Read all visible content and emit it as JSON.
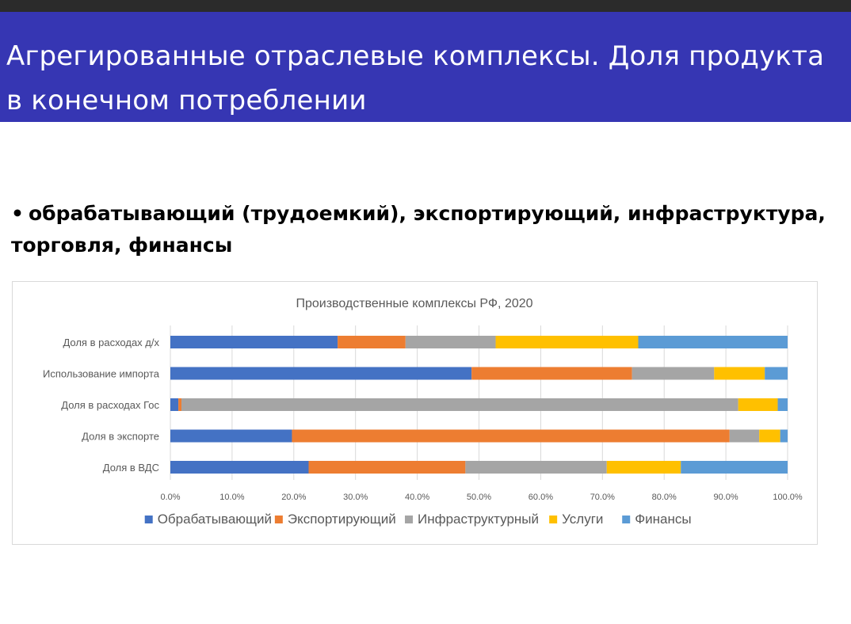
{
  "slide": {
    "title": "Агрегированные отраслевые комплексы. Доля продукта в конечном потреблении",
    "bullet_mark": "•",
    "bullet_text": "обрабатывающий (трудоемкий), экспортирующий, инфраструктура, торговля, финансы"
  },
  "chart_data": {
    "type": "bar",
    "orientation": "horizontal",
    "stacked": "percent",
    "title": "Производственные комплексы РФ, 2020",
    "categories": [
      "Доля в расходах д/х",
      "Использование импорта",
      "Доля в расходах Гос",
      "Доля в экспорте",
      "Доля в ВДС"
    ],
    "series": [
      {
        "name": "Обрабатывающий",
        "color": "#4472c4",
        "values": [
          27.1,
          48.8,
          1.3,
          19.7,
          22.4
        ]
      },
      {
        "name": "Экспортирующий",
        "color": "#ed7d31",
        "values": [
          11.0,
          26.0,
          0.5,
          70.9,
          25.4
        ]
      },
      {
        "name": "Инфраструктурный",
        "color": "#a5a5a5",
        "values": [
          14.6,
          13.3,
          90.2,
          4.8,
          22.9
        ]
      },
      {
        "name": "Услуги",
        "color": "#ffc000",
        "values": [
          23.1,
          8.2,
          6.4,
          3.4,
          12.0
        ]
      },
      {
        "name": "Финансы",
        "color": "#5b9bd5",
        "values": [
          24.2,
          3.7,
          1.6,
          1.2,
          17.3
        ]
      }
    ],
    "xlim": [
      0,
      100
    ],
    "x_ticks": [
      "0.0%",
      "10.0%",
      "20.0%",
      "30.0%",
      "40.0%",
      "50.0%",
      "60.0%",
      "70.0%",
      "80.0%",
      "90.0%",
      "100.0%"
    ],
    "grid": true,
    "legend": "bottom"
  }
}
